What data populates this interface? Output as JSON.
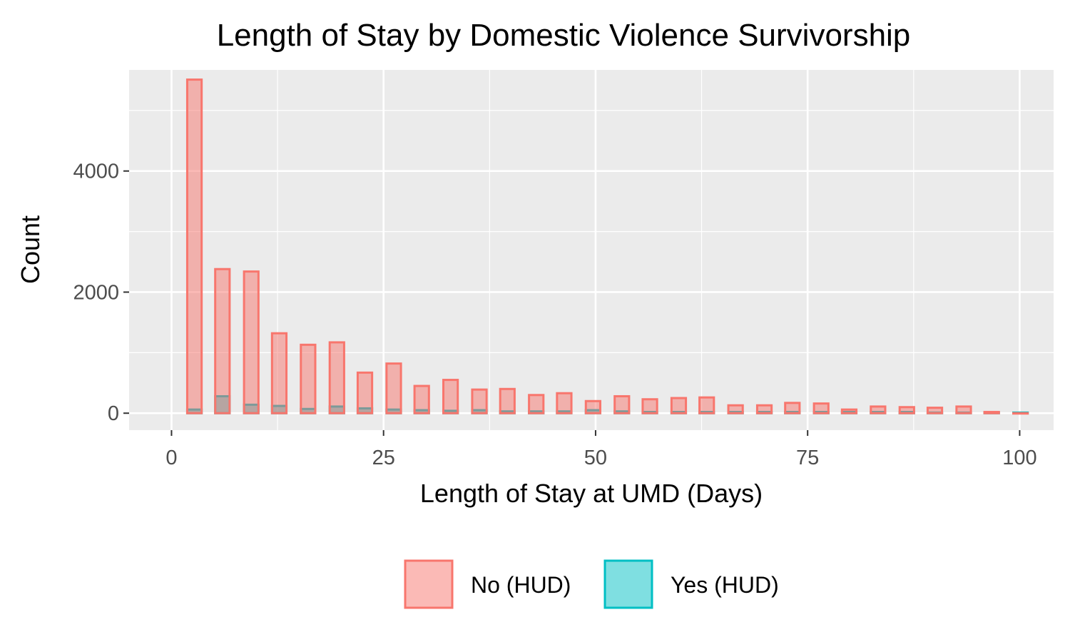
{
  "chart_data": {
    "type": "bar",
    "title": "Length of Stay by Domestic Violence Survivorship",
    "xlabel": "Length of Stay at UMD (Days)",
    "ylabel": "Count",
    "xlim": [
      -5,
      104
    ],
    "ylim": [
      -280,
      5670
    ],
    "x_ticks": [
      0,
      25,
      50,
      75,
      100
    ],
    "x_tick_labels": [
      "0",
      "25",
      "50",
      "75",
      "100"
    ],
    "y_ticks": [
      0,
      2000,
      4000
    ],
    "y_tick_labels": [
      "0",
      "2000",
      "4000"
    ],
    "grid": true,
    "legend_position": "bottom",
    "bar_width": 1.7,
    "x": [
      2.7,
      6,
      9.4,
      12.7,
      16.1,
      19.5,
      22.8,
      26.2,
      29.5,
      32.9,
      36.3,
      39.6,
      43,
      46.3,
      49.7,
      53.1,
      56.4,
      59.8,
      63.1,
      66.5,
      69.9,
      73.2,
      76.6,
      79.9,
      83.3,
      86.7,
      90,
      93.4,
      96.7,
      100.1
    ],
    "series": [
      {
        "name": "No (HUD)",
        "fill": "#f8766d",
        "values": [
          5510,
          2380,
          2340,
          1320,
          1130,
          1170,
          670,
          820,
          450,
          550,
          390,
          400,
          300,
          330,
          200,
          280,
          230,
          250,
          260,
          130,
          130,
          170,
          160,
          60,
          110,
          100,
          90,
          110,
          20,
          0
        ]
      },
      {
        "name": "Yes (HUD)",
        "fill": "#00bfc4",
        "values": [
          60,
          280,
          140,
          120,
          70,
          110,
          80,
          60,
          50,
          40,
          50,
          30,
          30,
          30,
          50,
          30,
          20,
          20,
          20,
          20,
          20,
          20,
          20,
          20,
          20,
          20,
          10,
          10,
          10,
          10
        ]
      }
    ]
  }
}
